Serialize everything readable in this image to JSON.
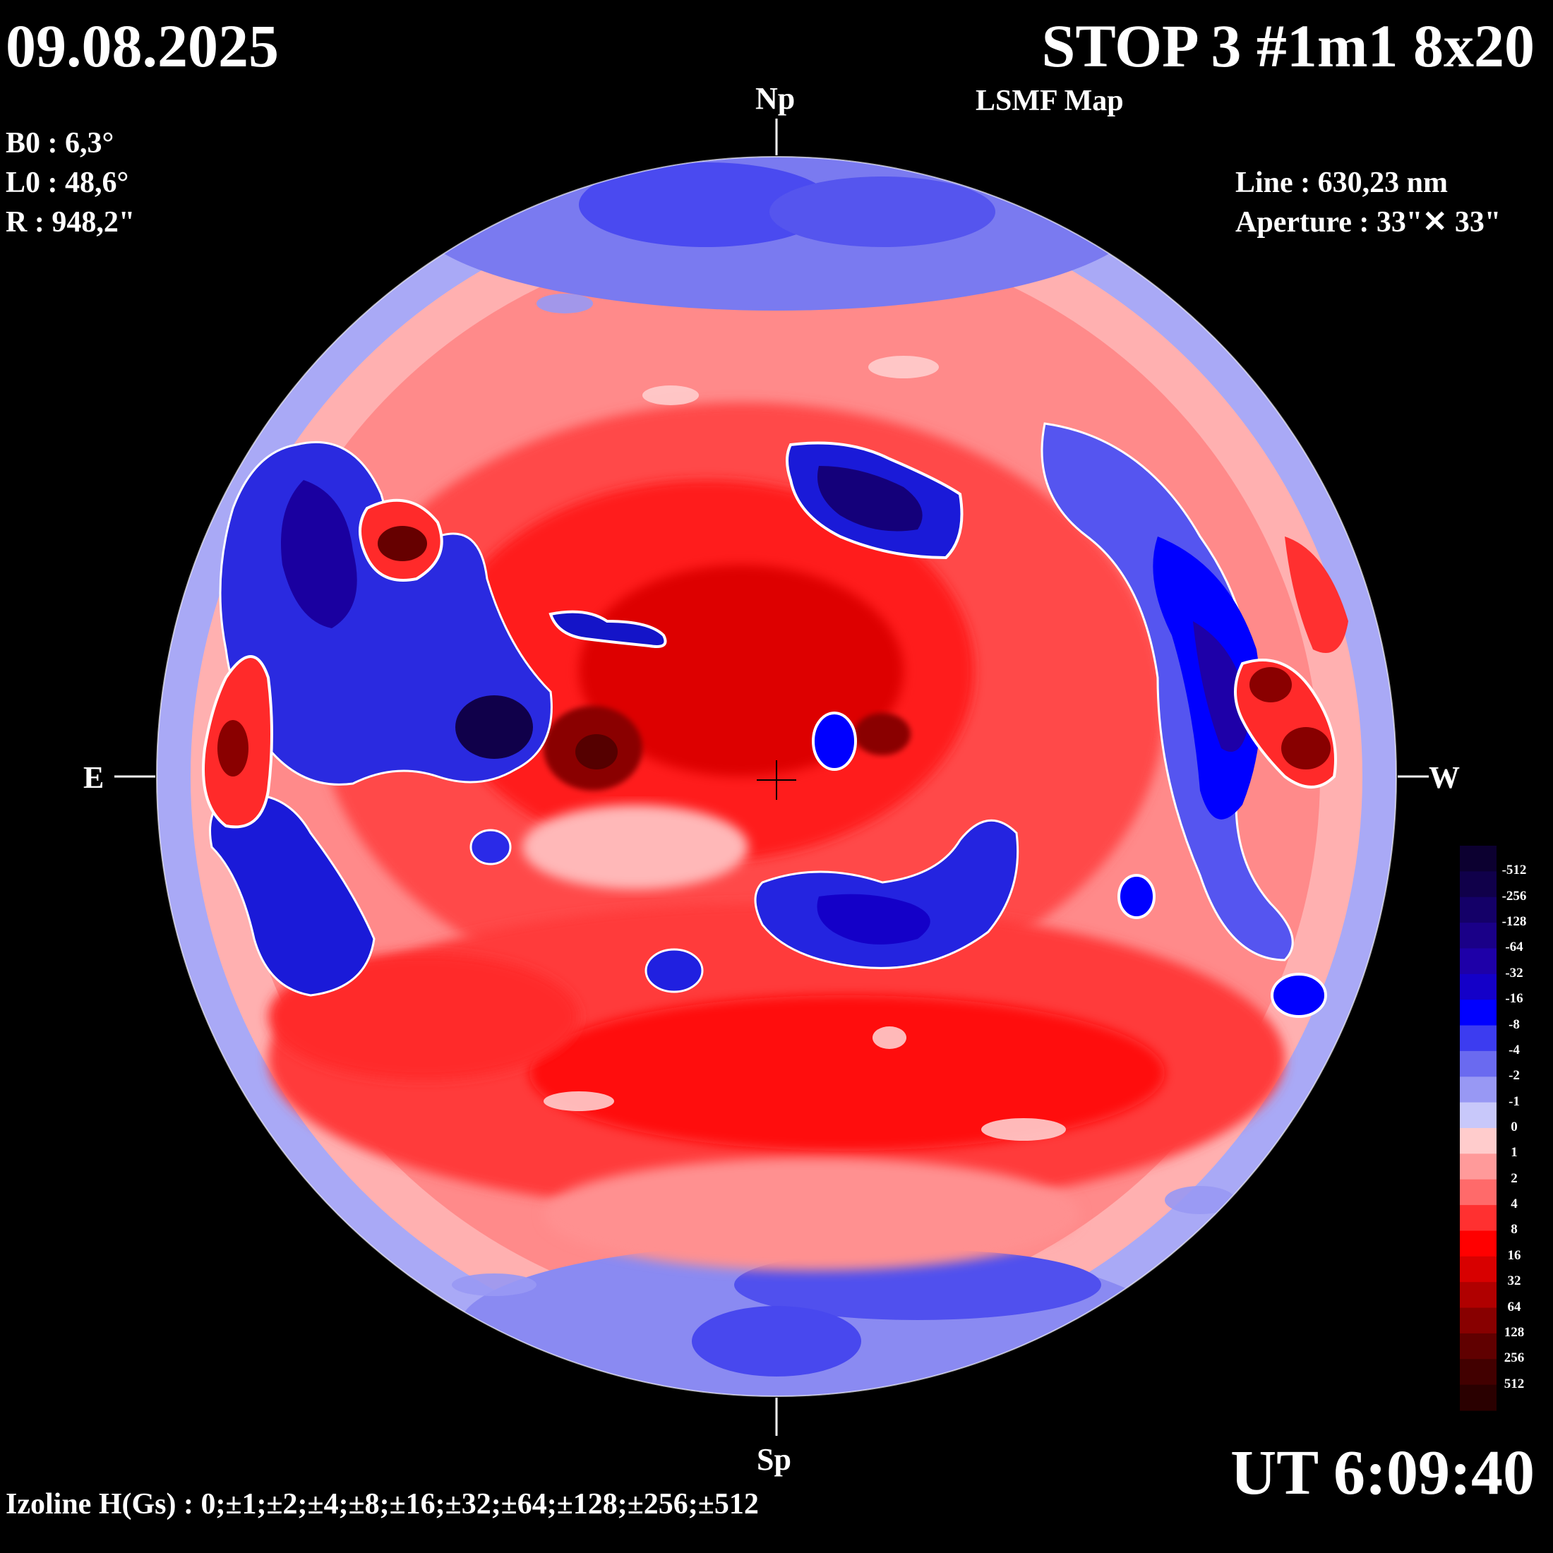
{
  "header": {
    "date": "09.08.2025",
    "title": "STOP 3 #1m1 8x20",
    "subtitle": "LSMF  Map"
  },
  "params": {
    "b0": "B0 : 6,3°",
    "l0": "L0 : 48,6°",
    "radius": "R  : 948,2\"",
    "line": "Line :  630,23 nm",
    "aperture": "Aperture : 33\"✕ 33\""
  },
  "orientation": {
    "north": "Np",
    "south": "Sp",
    "east": "E",
    "west": "W"
  },
  "time": "UT 6:09:40",
  "izoline": "Izoline H(Gs) : 0;±1;±2;±4;±8;±16;±32;±64;±128;±256;±512",
  "colorbar": {
    "labels": [
      "-512",
      "-256",
      "-128",
      "-64",
      "-32",
      "-16",
      "-8",
      "-4",
      "-2",
      "-1",
      "0",
      "1",
      "2",
      "4",
      "8",
      "16",
      "32",
      "64",
      "128",
      "256",
      "512"
    ],
    "colors": [
      "#0c0030",
      "#10004a",
      "#140068",
      "#1a0088",
      "#1e00a8",
      "#1400c8",
      "#0000ff",
      "#3c3cf0",
      "#6a6af0",
      "#9898f4",
      "#c8c8fa",
      "#ffcccc",
      "#ff9a9a",
      "#ff6a6a",
      "#ff3030",
      "#ff0000",
      "#d80000",
      "#b00000",
      "#880000",
      "#600000",
      "#420000",
      "#2a0000"
    ]
  }
}
